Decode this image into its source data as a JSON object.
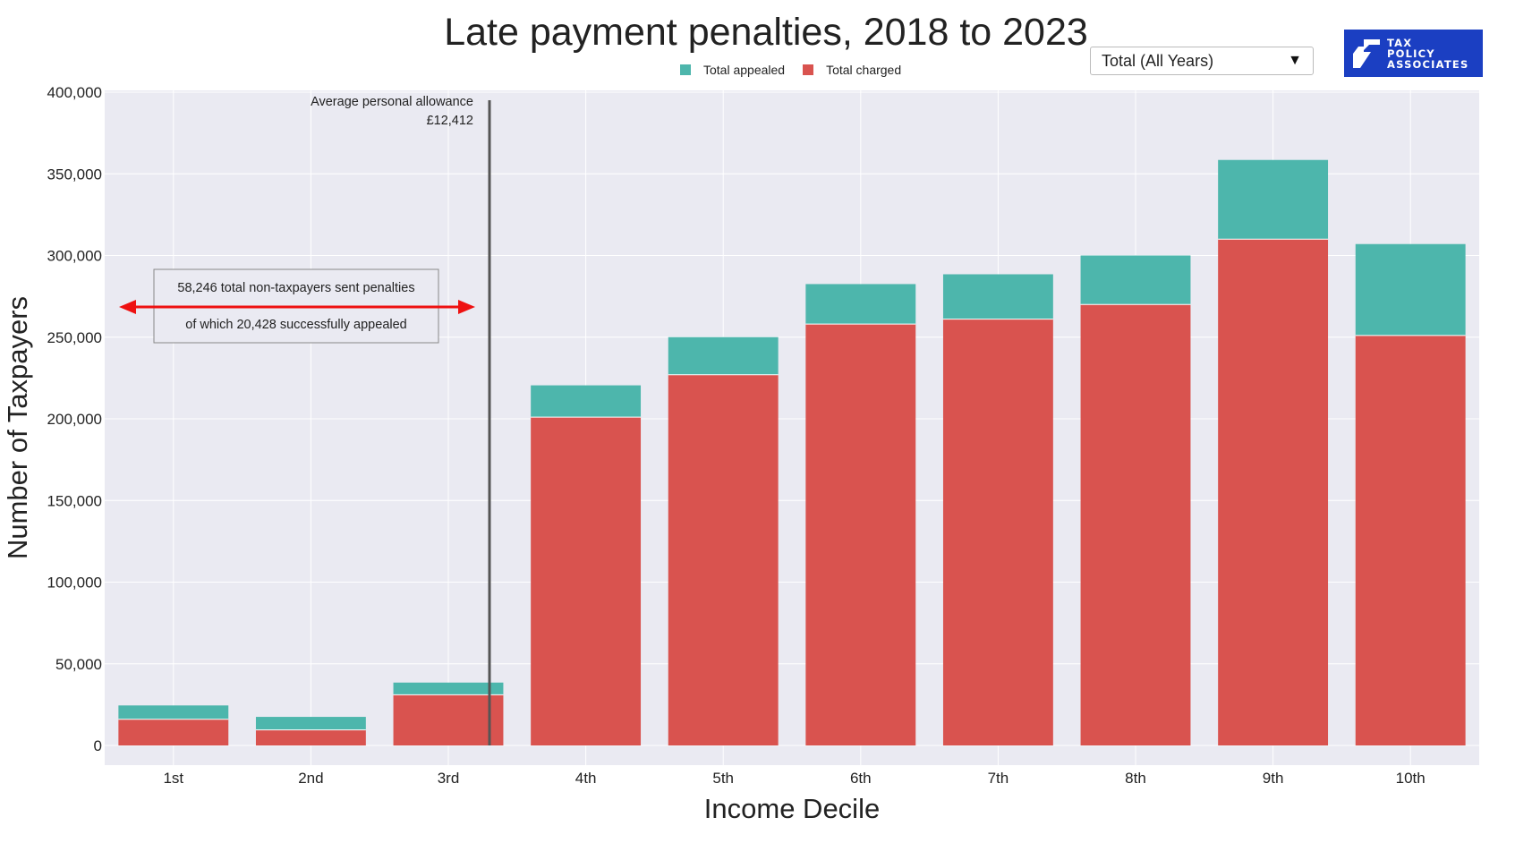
{
  "title": "Late payment penalties, 2018 to 2023",
  "year_selector": {
    "selected": "Total (All Years)"
  },
  "logo": {
    "lines": [
      "TAX",
      "POLICY",
      "ASSOCIATES"
    ]
  },
  "colors": {
    "appealed": "#4db6ac",
    "charged": "#d9534f",
    "plot_bg": "#eaeaf2",
    "logo_bg": "#1b3fc2",
    "arrow": "#ee1111"
  },
  "chart_data": {
    "type": "bar",
    "stacked": true,
    "title": "Late payment penalties, 2018 to 2023",
    "xlabel": "Income Decile",
    "ylabel": "Number of Taxpayers",
    "categories": [
      "1st",
      "2nd",
      "3rd",
      "4th",
      "5th",
      "6th",
      "7th",
      "8th",
      "9th",
      "10th"
    ],
    "series": [
      {
        "name": "Total charged",
        "values": [
          16000,
          9500,
          31000,
          201000,
          227000,
          258000,
          261000,
          270000,
          310000,
          251000
        ]
      },
      {
        "name": "Total appealed",
        "values": [
          8500,
          8000,
          7500,
          19500,
          23000,
          24500,
          27500,
          30000,
          48500,
          56000
        ]
      }
    ],
    "ylim": [
      0,
      400000
    ],
    "yticks": [
      0,
      50000,
      100000,
      150000,
      200000,
      250000,
      300000,
      350000,
      400000
    ],
    "ytick_labels": [
      "0",
      "50,000",
      "100,000",
      "150,000",
      "200,000",
      "250,000",
      "300,000",
      "350,000",
      "400,000"
    ],
    "legend": [
      "Total appealed",
      "Total charged"
    ],
    "legend_position": "top-center",
    "grid": true,
    "annotations": {
      "allowance_line": {
        "x_position": "between 3rd and 4th decile",
        "label_line1": "Average personal allowance",
        "label_line2": "£12,412"
      },
      "non_taxpayers_box": {
        "line1": "58,246 total non-taxpayers sent penalties",
        "line2": "of which 20,428 successfully appealed"
      }
    }
  }
}
